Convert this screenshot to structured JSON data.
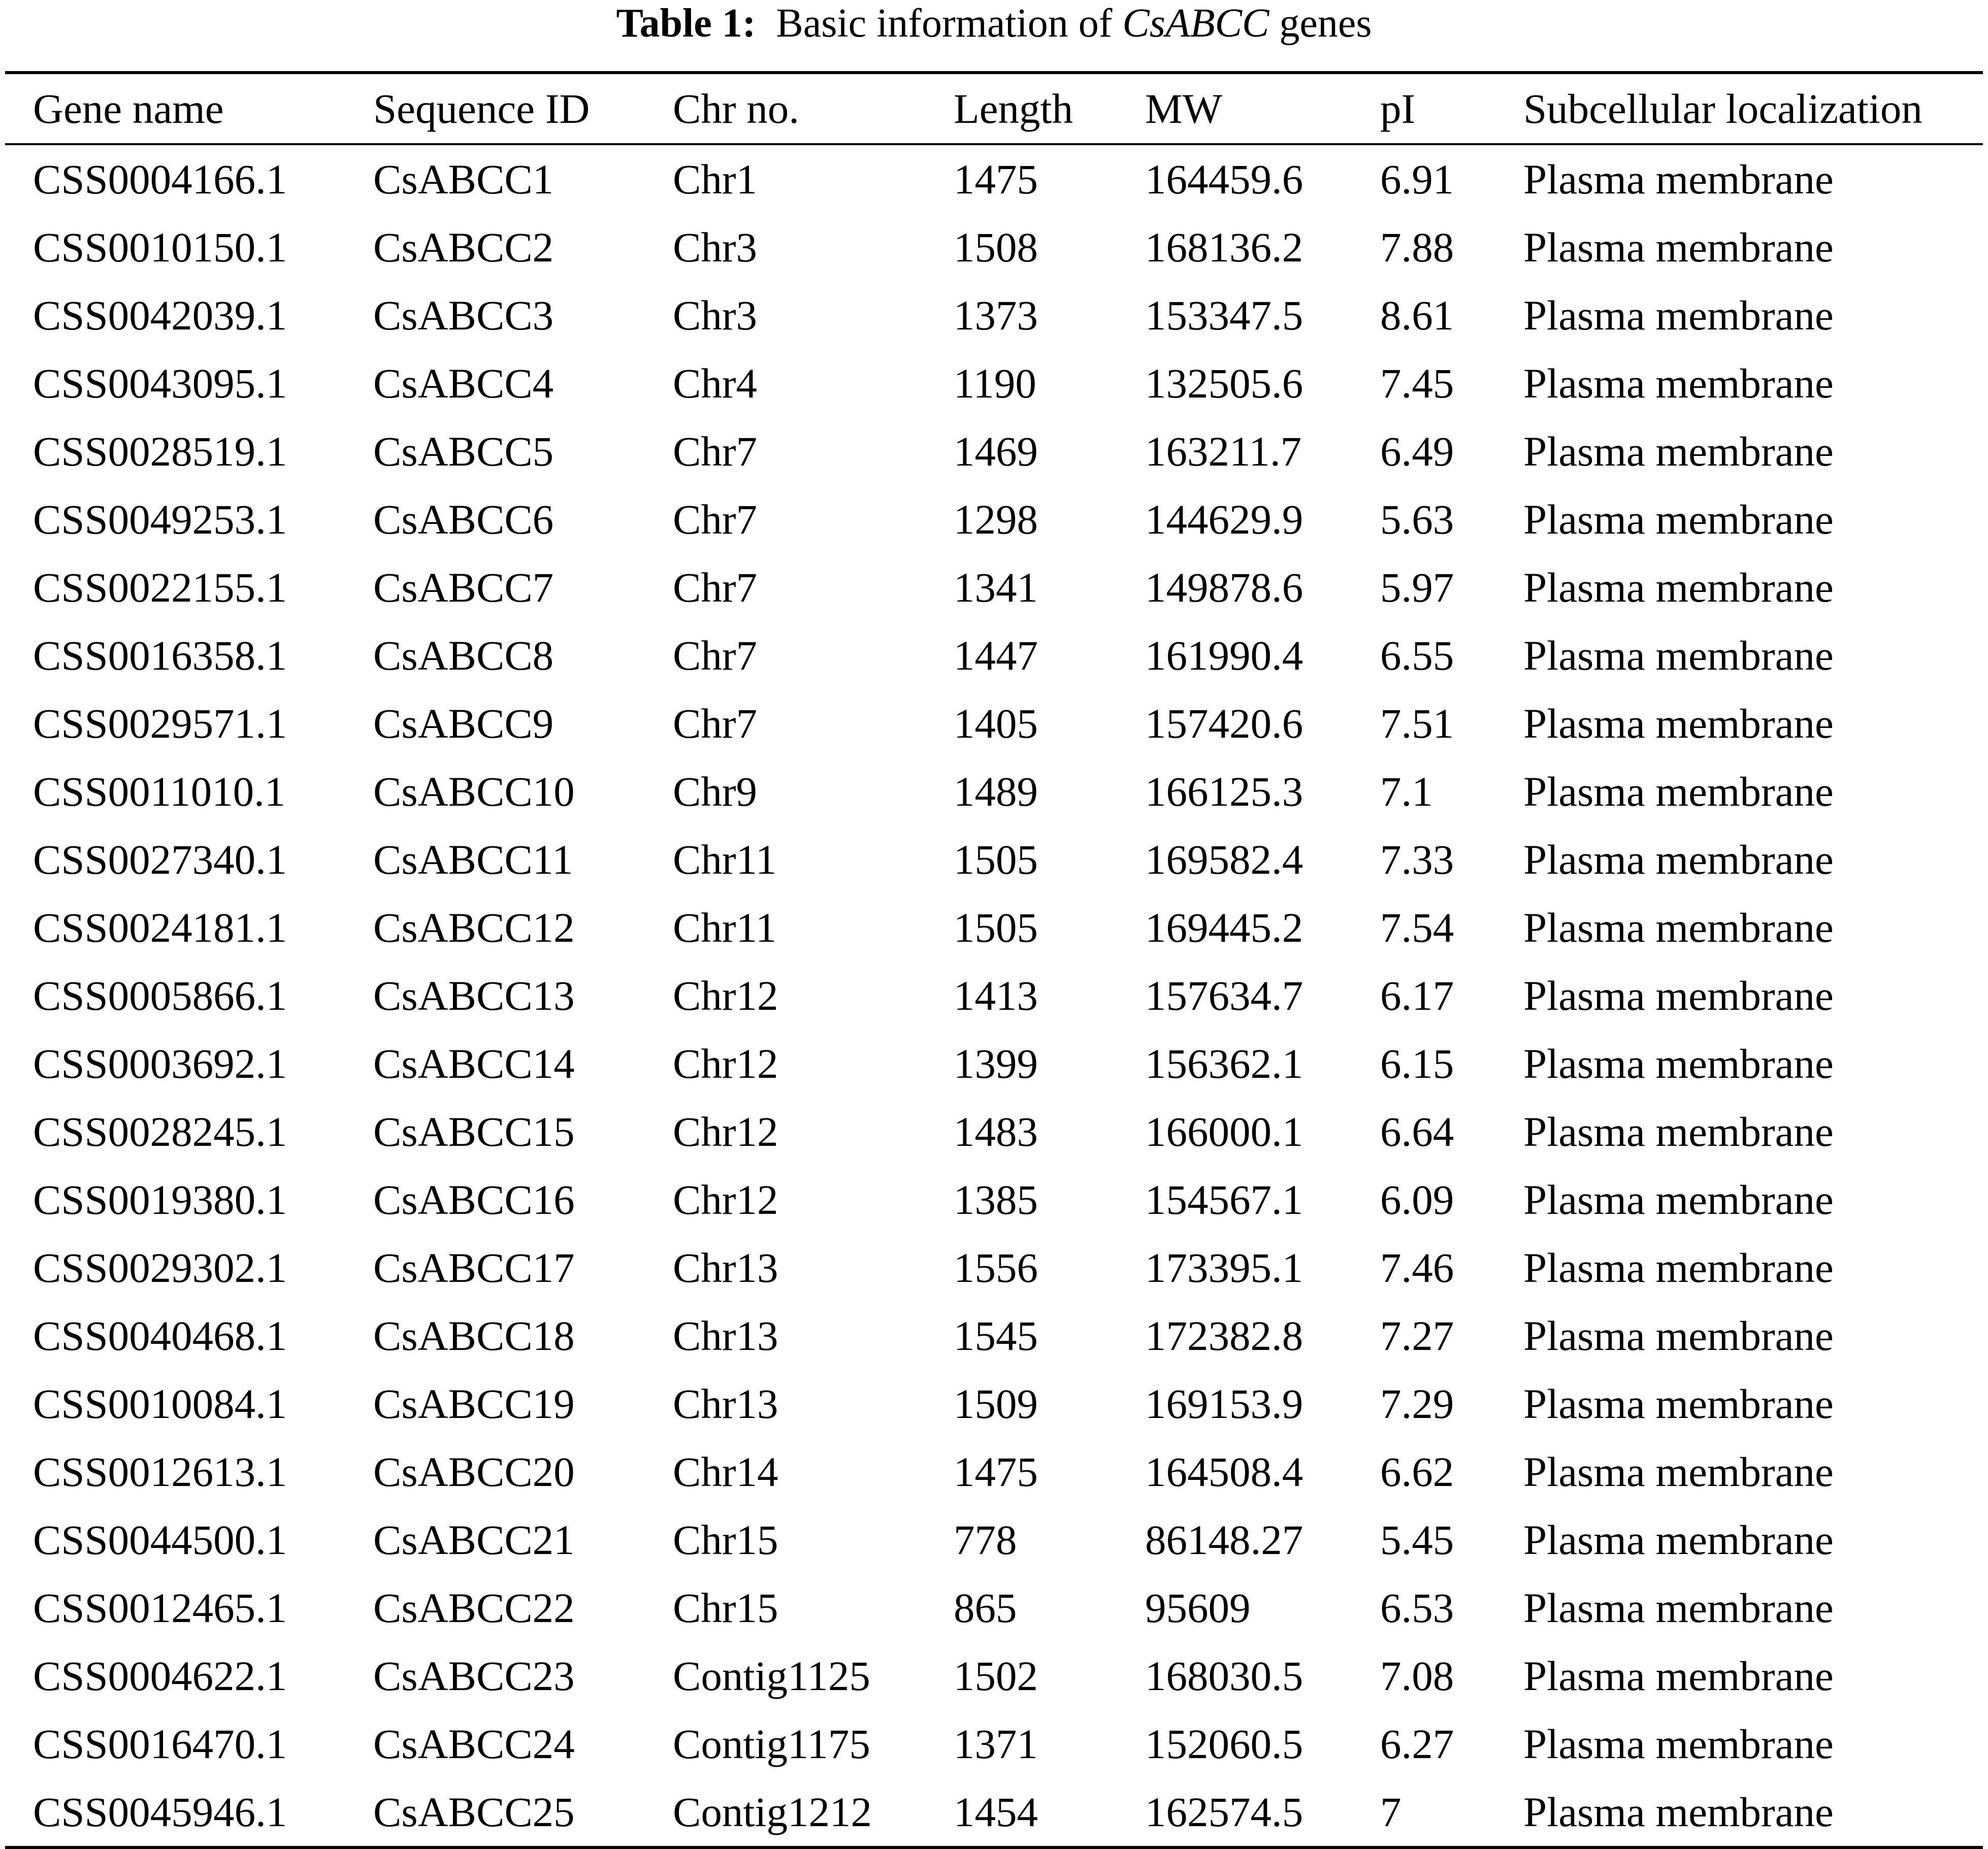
{
  "title": {
    "label": "Table 1:",
    "text_before": "Basic information of",
    "italic": "CsABCC",
    "text_after": "genes"
  },
  "table": {
    "headers": [
      "Gene name",
      "Sequence ID",
      "Chr no.",
      "Length",
      "MW",
      "pI",
      "Subcellular localization"
    ],
    "rows": [
      [
        "CSS0004166.1",
        "CsABCC1",
        "Chr1",
        "1475",
        "164459.6",
        "6.91",
        "Plasma membrane"
      ],
      [
        "CSS0010150.1",
        "CsABCC2",
        "Chr3",
        "1508",
        "168136.2",
        "7.88",
        "Plasma membrane"
      ],
      [
        "CSS0042039.1",
        "CsABCC3",
        "Chr3",
        "1373",
        "153347.5",
        "8.61",
        "Plasma membrane"
      ],
      [
        "CSS0043095.1",
        "CsABCC4",
        "Chr4",
        "1190",
        "132505.6",
        "7.45",
        "Plasma membrane"
      ],
      [
        "CSS0028519.1",
        "CsABCC5",
        "Chr7",
        "1469",
        "163211.7",
        "6.49",
        "Plasma membrane"
      ],
      [
        "CSS0049253.1",
        "CsABCC6",
        "Chr7",
        "1298",
        "144629.9",
        "5.63",
        "Plasma membrane"
      ],
      [
        "CSS0022155.1",
        "CsABCC7",
        "Chr7",
        "1341",
        "149878.6",
        "5.97",
        "Plasma membrane"
      ],
      [
        "CSS0016358.1",
        "CsABCC8",
        "Chr7",
        "1447",
        "161990.4",
        "6.55",
        "Plasma membrane"
      ],
      [
        "CSS0029571.1",
        "CsABCC9",
        "Chr7",
        "1405",
        "157420.6",
        "7.51",
        "Plasma membrane"
      ],
      [
        "CSS0011010.1",
        "CsABCC10",
        "Chr9",
        "1489",
        "166125.3",
        "7.1",
        "Plasma membrane"
      ],
      [
        "CSS0027340.1",
        "CsABCC11",
        "Chr11",
        "1505",
        "169582.4",
        "7.33",
        "Plasma membrane"
      ],
      [
        "CSS0024181.1",
        "CsABCC12",
        "Chr11",
        "1505",
        "169445.2",
        "7.54",
        "Plasma membrane"
      ],
      [
        "CSS0005866.1",
        "CsABCC13",
        "Chr12",
        "1413",
        "157634.7",
        "6.17",
        "Plasma membrane"
      ],
      [
        "CSS0003692.1",
        "CsABCC14",
        "Chr12",
        "1399",
        "156362.1",
        "6.15",
        "Plasma membrane"
      ],
      [
        "CSS0028245.1",
        "CsABCC15",
        "Chr12",
        "1483",
        "166000.1",
        "6.64",
        "Plasma membrane"
      ],
      [
        "CSS0019380.1",
        "CsABCC16",
        "Chr12",
        "1385",
        "154567.1",
        "6.09",
        "Plasma membrane"
      ],
      [
        "CSS0029302.1",
        "CsABCC17",
        "Chr13",
        "1556",
        "173395.1",
        "7.46",
        "Plasma membrane"
      ],
      [
        "CSS0040468.1",
        "CsABCC18",
        "Chr13",
        "1545",
        "172382.8",
        "7.27",
        "Plasma membrane"
      ],
      [
        "CSS0010084.1",
        "CsABCC19",
        "Chr13",
        "1509",
        "169153.9",
        "7.29",
        "Plasma membrane"
      ],
      [
        "CSS0012613.1",
        "CsABCC20",
        "Chr14",
        "1475",
        "164508.4",
        "6.62",
        "Plasma membrane"
      ],
      [
        "CSS0044500.1",
        "CsABCC21",
        "Chr15",
        "778",
        "86148.27",
        "5.45",
        "Plasma membrane"
      ],
      [
        "CSS0012465.1",
        "CsABCC22",
        "Chr15",
        "865",
        "95609",
        "6.53",
        "Plasma membrane"
      ],
      [
        "CSS0004622.1",
        "CsABCC23",
        "Contig1125",
        "1502",
        "168030.5",
        "7.08",
        "Plasma membrane"
      ],
      [
        "CSS0016470.1",
        "CsABCC24",
        "Contig1175",
        "1371",
        "152060.5",
        "6.27",
        "Plasma membrane"
      ],
      [
        "CSS0045946.1",
        "CsABCC25",
        "Contig1212",
        "1454",
        "162574.5",
        "7",
        "Plasma membrane"
      ]
    ]
  }
}
